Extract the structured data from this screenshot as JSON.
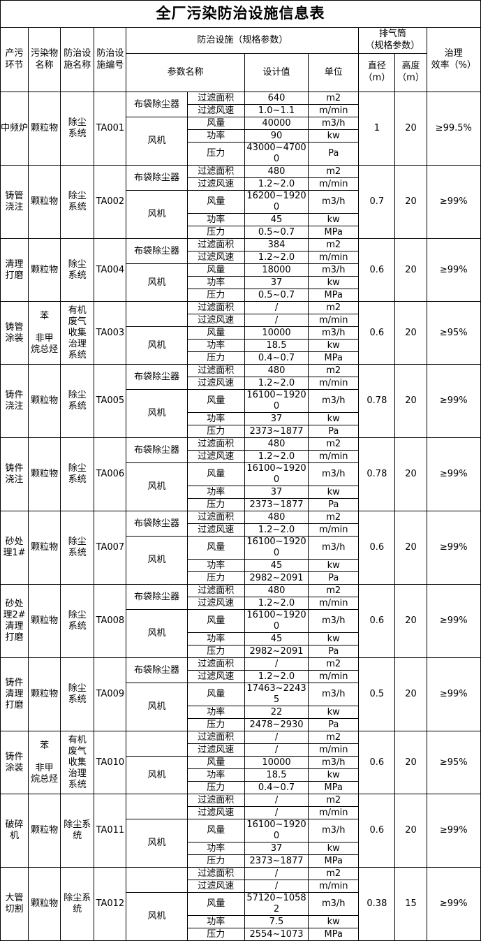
{
  "title": "全厂污染防治设施信息表",
  "header": {
    "stage": "产污\n环节",
    "pollutant": "污染物\n名称",
    "facility": "防治设\n施名称",
    "facility_code": "防治设\n施编号",
    "facility_spec": "防治设施（规格参数）",
    "param_name": "参数名称",
    "design_value": "设计值",
    "unit": "单位",
    "stack_spec": "排气筒\n（规格参数）",
    "diameter": "直径\n（m）",
    "height": "高度\n（m）",
    "efficiency": "治理\n效率（%）"
  },
  "blocks": [
    {
      "stage": "中频炉",
      "pollutant": "颗粒物",
      "facility": "除尘\n系统",
      "code": "TA001",
      "devices": [
        {
          "name": "布袋除尘器",
          "params": [
            {
              "name": "过滤面积",
              "value": "640",
              "unit": "m2"
            },
            {
              "name": "过滤风速",
              "value": "1.0~1.1",
              "unit": "m/min"
            }
          ]
        },
        {
          "name": "风机",
          "params": [
            {
              "name": "风量",
              "value": "40000",
              "unit": "m3/h"
            },
            {
              "name": "功率",
              "value": "90",
              "unit": "kw"
            },
            {
              "name": "压力",
              "value": "43000~47000",
              "unit": "Pa"
            }
          ]
        }
      ],
      "diameter": "1",
      "height": "20",
      "efficiency": "≥99.5%"
    },
    {
      "stage": "铸管\n浇注",
      "pollutant": "颗粒物",
      "facility": "除尘\n系统",
      "code": "TA002",
      "devices": [
        {
          "name": "布袋除尘器",
          "params": [
            {
              "name": "过滤面积",
              "value": "480",
              "unit": "m2"
            },
            {
              "name": "过滤风速",
              "value": "1.2~2.0",
              "unit": "m/min"
            }
          ]
        },
        {
          "name": "风机",
          "params": [
            {
              "name": "风量",
              "value": "16200~19200",
              "unit": "m3/h"
            },
            {
              "name": "功率",
              "value": "45",
              "unit": "kw"
            },
            {
              "name": "压力",
              "value": "0.5~0.7",
              "unit": "MPa"
            }
          ]
        }
      ],
      "diameter": "0.7",
      "height": "20",
      "efficiency": "≥99%"
    },
    {
      "stage": "清理\n打磨",
      "pollutant": "颗粒物",
      "facility": "除尘\n系统",
      "code": "TA004",
      "devices": [
        {
          "name": "布袋除尘器",
          "params": [
            {
              "name": "过滤面积",
              "value": "384",
              "unit": "m2"
            },
            {
              "name": "过滤风速",
              "value": "1.2~2.0",
              "unit": "m/min"
            }
          ]
        },
        {
          "name": "风机",
          "params": [
            {
              "name": "风量",
              "value": "18000",
              "unit": "m3/h"
            },
            {
              "name": "功率",
              "value": "37",
              "unit": "kw"
            },
            {
              "name": "压力",
              "value": "0.5~0.7",
              "unit": "MPa"
            }
          ]
        }
      ],
      "diameter": "0.6",
      "height": "20",
      "efficiency": "≥99%"
    },
    {
      "stage": "铸管\n涂装",
      "pollutant": "苯\n\n非甲\n烷总烃",
      "facility": "有机\n废气\n收集\n治理\n系统",
      "code": "TA003",
      "devices": [
        {
          "name": "",
          "params": [
            {
              "name": "过滤面积",
              "value": "/",
              "unit": "m2"
            },
            {
              "name": "过滤风速",
              "value": "/",
              "unit": "m/min"
            }
          ]
        },
        {
          "name": "风机",
          "params": [
            {
              "name": "风量",
              "value": "10000",
              "unit": "m3/h"
            },
            {
              "name": "功率",
              "value": "18.5",
              "unit": "kw"
            },
            {
              "name": "压力",
              "value": "0.4~0.7",
              "unit": "MPa"
            }
          ]
        }
      ],
      "diameter": "0.6",
      "height": "20",
      "efficiency": "≥95%"
    },
    {
      "stage": "铸件\n浇注",
      "pollutant": "颗粒物",
      "facility": "除尘\n系统",
      "code": "TA005",
      "devices": [
        {
          "name": "布袋除尘器",
          "params": [
            {
              "name": "过滤面积",
              "value": "480",
              "unit": "m2"
            },
            {
              "name": "过滤风速",
              "value": "1.2~2.0",
              "unit": "m/min"
            }
          ]
        },
        {
          "name": "风机",
          "params": [
            {
              "name": "风量",
              "value": "16100~19200",
              "unit": "m3/h"
            },
            {
              "name": "功率",
              "value": "37",
              "unit": "kw"
            },
            {
              "name": "压力",
              "value": "2373~1877",
              "unit": "Pa"
            }
          ]
        }
      ],
      "diameter": "0.78",
      "height": "20",
      "efficiency": "≥99%"
    },
    {
      "stage": "铸件\n浇注",
      "pollutant": "颗粒物",
      "facility": "除尘\n系统",
      "code": "TA006",
      "devices": [
        {
          "name": "布袋除尘器",
          "params": [
            {
              "name": "过滤面积",
              "value": "480",
              "unit": "m2"
            },
            {
              "name": "过滤风速",
              "value": "1.2~2.0",
              "unit": "m/min"
            }
          ]
        },
        {
          "name": "风机",
          "params": [
            {
              "name": "风量",
              "value": "16100~19200",
              "unit": "m3/h"
            },
            {
              "name": "功率",
              "value": "37",
              "unit": "kw"
            },
            {
              "name": "压力",
              "value": "2373~1877",
              "unit": "Pa"
            }
          ]
        }
      ],
      "diameter": "0.78",
      "height": "20",
      "efficiency": "≥99%"
    },
    {
      "stage": "砂处\n理1#",
      "pollutant": "颗粒物",
      "facility": "除尘\n系统",
      "code": "TA007",
      "devices": [
        {
          "name": "布袋除尘器",
          "params": [
            {
              "name": "过滤面积",
              "value": "480",
              "unit": "m2"
            },
            {
              "name": "过滤风速",
              "value": "1.2~2.0",
              "unit": "m/min"
            }
          ]
        },
        {
          "name": "风机",
          "params": [
            {
              "name": "风量",
              "value": "16100~19200",
              "unit": "m3/h"
            },
            {
              "name": "功率",
              "value": "45",
              "unit": "kw"
            },
            {
              "name": "压力",
              "value": "2982~2091",
              "unit": "Pa"
            }
          ]
        }
      ],
      "diameter": "0.6",
      "height": "20",
      "efficiency": "≥99%"
    },
    {
      "stage": "砂处\n理2#\n清理\n打磨",
      "pollutant": "颗粒物",
      "facility": "除尘\n系统",
      "code": "TA008",
      "devices": [
        {
          "name": "布袋除尘器",
          "params": [
            {
              "name": "过滤面积",
              "value": "480",
              "unit": "m2"
            },
            {
              "name": "过滤风速",
              "value": "1.2~2.0",
              "unit": "m/min"
            }
          ]
        },
        {
          "name": "风机",
          "params": [
            {
              "name": "风量",
              "value": "16100~19200",
              "unit": "m3/h"
            },
            {
              "name": "功率",
              "value": "45",
              "unit": "kw"
            },
            {
              "name": "压力",
              "value": "2982~2091",
              "unit": "Pa"
            }
          ]
        }
      ],
      "diameter": "0.6",
      "height": "20",
      "efficiency": "≥99%"
    },
    {
      "stage": "铸件\n清理\n打磨",
      "pollutant": "颗粒物",
      "facility": "除尘\n系统",
      "code": "TA009",
      "devices": [
        {
          "name": "布袋除尘器",
          "params": [
            {
              "name": "过滤面积",
              "value": "/",
              "unit": "m2"
            },
            {
              "name": "过滤风速",
              "value": "1.2~2.0",
              "unit": "m/min"
            }
          ]
        },
        {
          "name": "风机",
          "params": [
            {
              "name": "风量",
              "value": "17463~22435",
              "unit": "m3/h"
            },
            {
              "name": "功率",
              "value": "22",
              "unit": "kw"
            },
            {
              "name": "压力",
              "value": "2478~2930",
              "unit": "Pa"
            }
          ]
        }
      ],
      "diameter": "0.5",
      "height": "20",
      "efficiency": "≥99%"
    },
    {
      "stage": "铸件\n涂装",
      "pollutant": "苯\n\n非甲\n烷总烃",
      "facility": "有机\n废气\n收集\n治理\n系统",
      "code": "TA010",
      "devices": [
        {
          "name": "",
          "params": [
            {
              "name": "过滤面积",
              "value": "/",
              "unit": "m2"
            },
            {
              "name": "过滤风速",
              "value": "/",
              "unit": "m/min"
            }
          ]
        },
        {
          "name": "风机",
          "params": [
            {
              "name": "风量",
              "value": "10000",
              "unit": "m3/h"
            },
            {
              "name": "功率",
              "value": "18.5",
              "unit": "kw"
            },
            {
              "name": "压力",
              "value": "0.4~0.7",
              "unit": "MPa"
            }
          ]
        }
      ],
      "diameter": "0.6",
      "height": "20",
      "efficiency": "≥95%"
    },
    {
      "stage": "破碎\n机",
      "pollutant": "颗粒物",
      "facility": "除尘系\n统",
      "code": "TA011",
      "devices": [
        {
          "name": "",
          "params": [
            {
              "name": "过滤面积",
              "value": "/",
              "unit": "m2"
            },
            {
              "name": "过滤风速",
              "value": "/",
              "unit": "m/min"
            }
          ]
        },
        {
          "name": "风机",
          "params": [
            {
              "name": "风量",
              "value": "16100~19200",
              "unit": "m3/h"
            },
            {
              "name": "功率",
              "value": "37",
              "unit": "kw"
            },
            {
              "name": "压力",
              "value": "2373~1877",
              "unit": "MPa"
            }
          ]
        }
      ],
      "diameter": "0.6",
      "height": "20",
      "efficiency": "≥99%"
    },
    {
      "stage": "大管\n切割",
      "pollutant": "颗粒物",
      "facility": "除尘系\n统",
      "code": "TA012",
      "devices": [
        {
          "name": "",
          "params": [
            {
              "name": "过滤面积",
              "value": "/",
              "unit": "m2"
            },
            {
              "name": "过滤风速",
              "value": "/",
              "unit": "m/min"
            }
          ]
        },
        {
          "name": "风机",
          "params": [
            {
              "name": "风量",
              "value": "57120~10582",
              "unit": "m3/h"
            },
            {
              "name": "功率",
              "value": "7.5",
              "unit": "kw"
            },
            {
              "name": "压力",
              "value": "2554~1073",
              "unit": "MPa"
            }
          ]
        }
      ],
      "diameter": "0.38",
      "height": "15",
      "efficiency": "≥99%"
    }
  ]
}
